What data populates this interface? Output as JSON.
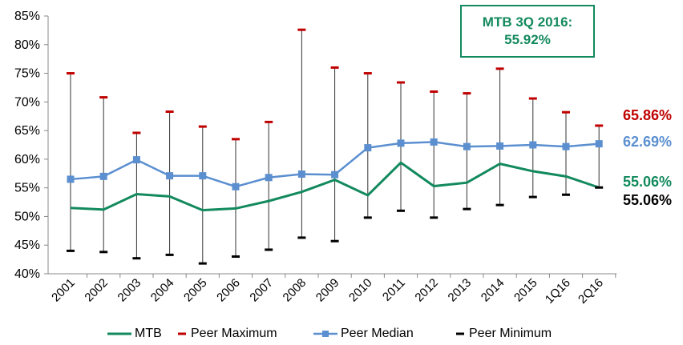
{
  "callout": {
    "line1": "MTB 3Q 2016:",
    "line2": "55.92%"
  },
  "end_labels": {
    "peer_max": "65.86%",
    "peer_median": "62.69%",
    "mtb": "55.06%",
    "peer_min": "55.06%"
  },
  "colors": {
    "mtb": "#138a5e",
    "peer_max": "#c00000",
    "peer_median": "#5b8fd0",
    "peer_min": "#000000",
    "callout_border": "#138a5e"
  },
  "chart_data": {
    "type": "line",
    "categories": [
      "2001",
      "2002",
      "2003",
      "2004",
      "2005",
      "2006",
      "2007",
      "2008",
      "2009",
      "2010",
      "2011",
      "2012",
      "2013",
      "2014",
      "2015",
      "1Q16",
      "2Q16"
    ],
    "series": [
      {
        "name": "MTB",
        "values": [
          51.5,
          51.2,
          53.9,
          53.5,
          51.1,
          51.4,
          52.7,
          54.3,
          56.4,
          53.7,
          59.4,
          55.3,
          55.9,
          59.2,
          57.9,
          57.0,
          55.06
        ]
      },
      {
        "name": "Peer Maximum",
        "values": [
          75.0,
          70.8,
          64.6,
          68.3,
          65.7,
          63.5,
          66.5,
          82.6,
          76.0,
          75.0,
          73.4,
          71.8,
          71.5,
          75.8,
          70.6,
          68.2,
          65.86
        ]
      },
      {
        "name": "Peer Median",
        "values": [
          56.5,
          57.0,
          59.9,
          57.1,
          57.1,
          55.2,
          56.8,
          57.4,
          57.3,
          62.0,
          62.8,
          63.0,
          62.2,
          62.3,
          62.5,
          62.2,
          62.69
        ]
      },
      {
        "name": "Peer Minimum",
        "values": [
          44.0,
          43.8,
          42.7,
          43.3,
          41.8,
          43.0,
          44.2,
          46.3,
          45.7,
          49.8,
          51.0,
          49.8,
          51.3,
          52.0,
          53.4,
          53.8,
          55.06
        ]
      }
    ],
    "ylim": [
      40,
      85
    ],
    "yticks": [
      "40%",
      "45%",
      "50%",
      "55%",
      "60%",
      "65%",
      "70%",
      "75%",
      "80%",
      "85%"
    ],
    "legend_position": "bottom",
    "grid": false
  }
}
